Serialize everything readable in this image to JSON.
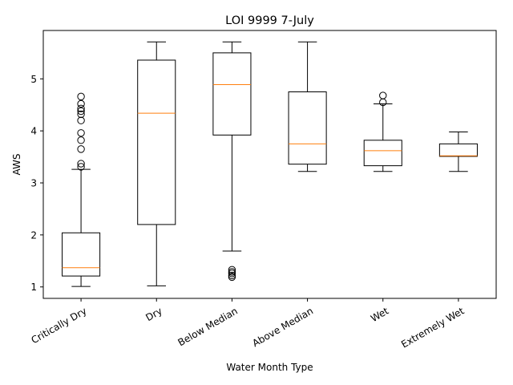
{
  "chart_data": {
    "type": "box",
    "title": "LOI 9999 7-July",
    "xlabel": "Water Month Type",
    "ylabel": "AWS",
    "ylim": [
      0.78,
      5.93
    ],
    "yticks": [
      1,
      2,
      3,
      4,
      5
    ],
    "grid": false,
    "median_color": "#ff7f0e",
    "box_color": "#000000",
    "categories": [
      "Critically Dry",
      "Dry",
      "Below Median",
      "Above Median",
      "Wet",
      "Extremely Wet"
    ],
    "boxes": [
      {
        "whisker_low": 1.01,
        "q1": 1.21,
        "median": 1.37,
        "q3": 2.04,
        "whisker_high": 3.26,
        "outliers": [
          3.31,
          3.37,
          3.65,
          3.82,
          3.96,
          4.2,
          4.32,
          4.38,
          4.43,
          4.52,
          4.66
        ]
      },
      {
        "whisker_low": 1.02,
        "q1": 2.2,
        "median": 4.34,
        "q3": 5.36,
        "whisker_high": 5.71,
        "outliers": []
      },
      {
        "whisker_low": 1.69,
        "q1": 3.92,
        "median": 4.89,
        "q3": 5.5,
        "whisker_high": 5.71,
        "outliers": [
          1.19,
          1.22,
          1.26,
          1.29,
          1.33
        ]
      },
      {
        "whisker_low": 3.22,
        "q1": 3.36,
        "median": 3.75,
        "q3": 4.75,
        "whisker_high": 5.71,
        "outliers": []
      },
      {
        "whisker_low": 3.22,
        "q1": 3.33,
        "median": 3.62,
        "q3": 3.82,
        "whisker_high": 4.52,
        "outliers": [
          4.55,
          4.68
        ]
      },
      {
        "whisker_low": 3.22,
        "q1": 3.51,
        "median": 3.52,
        "q3": 3.75,
        "whisker_high": 3.98,
        "outliers": []
      }
    ]
  }
}
